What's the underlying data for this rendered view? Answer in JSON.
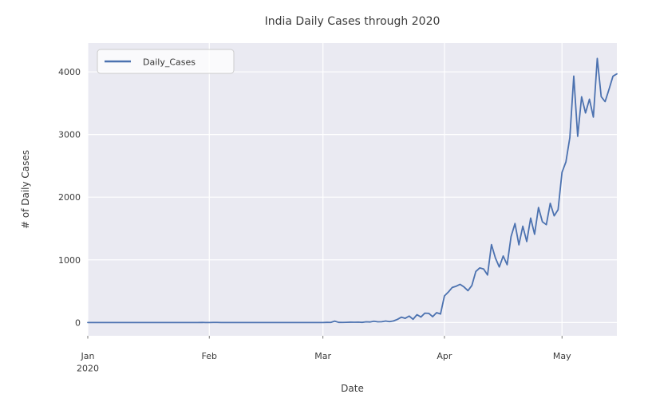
{
  "title": "India Daily Cases through 2020",
  "chart_data": {
    "type": "line",
    "title": "India Daily Cases through 2020",
    "xlabel": "Date",
    "ylabel": "# of Daily Cases",
    "grid": true,
    "legend": {
      "label": "Daily_Cases",
      "position": "upper-left"
    },
    "x_start_date": "2020-01-01",
    "x_end_date": "2020-05-15",
    "x_tick_day_offsets": [
      0,
      31,
      60,
      91,
      121
    ],
    "x_tick_labels": [
      [
        "Jan",
        "2020"
      ],
      [
        "Feb"
      ],
      [
        "Mar"
      ],
      [
        "Apr"
      ],
      [
        "May"
      ]
    ],
    "y_ticks": [
      0,
      1000,
      2000,
      3000,
      4000
    ],
    "y_tick_labels": [
      "0",
      "1000",
      "2000",
      "3000",
      "4000"
    ],
    "ylim": [
      -212,
      4459
    ],
    "colors": {
      "line": "#4C72B0",
      "axes_background": "#EAEAF2",
      "grid": "#FFFFFF",
      "text": "#3b3b3b",
      "legend_face": "rgba(255,255,255,0.75)",
      "legend_edge": "#CCCCCC"
    },
    "series": [
      {
        "name": "Daily_Cases",
        "values": [
          0,
          0,
          0,
          0,
          0,
          0,
          0,
          0,
          0,
          0,
          0,
          0,
          0,
          0,
          0,
          0,
          0,
          0,
          0,
          0,
          0,
          0,
          0,
          0,
          0,
          0,
          0,
          0,
          0,
          1,
          0,
          0,
          1,
          1,
          0,
          0,
          0,
          0,
          0,
          0,
          0,
          0,
          0,
          0,
          0,
          0,
          0,
          0,
          0,
          0,
          0,
          0,
          0,
          0,
          0,
          0,
          0,
          0,
          0,
          0,
          0,
          2,
          1,
          22,
          2,
          1,
          3,
          5,
          4,
          6,
          2,
          11,
          8,
          20,
          11,
          12,
          23,
          14,
          25,
          50,
          85,
          67,
          103,
          52,
          125,
          88,
          149,
          146,
          93,
          157,
          136,
          424,
          486,
          560,
          579,
          609,
          567,
          508,
          591,
          813,
          871,
          854,
          758,
          1243,
          1031,
          886,
          1061,
          922,
          1371,
          1580,
          1239,
          1537,
          1292,
          1667,
          1408,
          1835,
          1607,
          1561,
          1902,
          1702,
          1801,
          2396,
          2564,
          2952,
          3932,
          2971,
          3602,
          3344,
          3563,
          3277,
          4213,
          3604,
          3525,
          3722,
          3930,
          3967
        ]
      }
    ]
  }
}
